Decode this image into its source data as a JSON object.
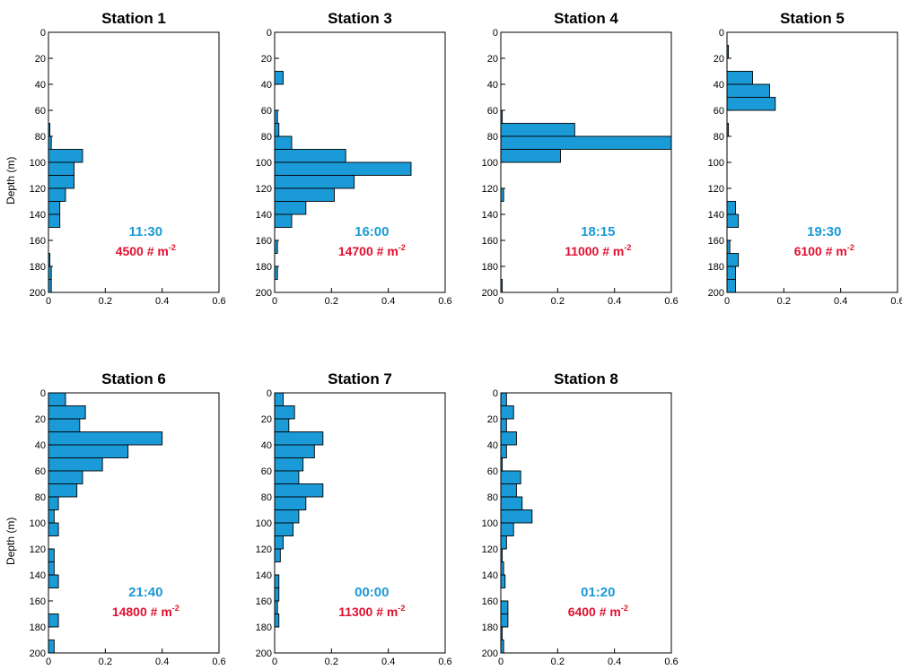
{
  "colors": {
    "bar": "#1a9ad6",
    "time": "#1a9ad6",
    "density": "#e0102f",
    "axis": "#000000"
  },
  "chart_data": [
    {
      "type": "bar",
      "orientation": "horizontal",
      "title": "Station 1",
      "ylabel": "Depth (m)",
      "xlabel": "",
      "xlim": [
        0,
        0.6
      ],
      "ylim": [
        200,
        0
      ],
      "xticks": [
        "0",
        "0.2",
        "0.4",
        "0.6"
      ],
      "yticks": [
        "0",
        "20",
        "40",
        "60",
        "80",
        "100",
        "120",
        "140",
        "160",
        "180",
        "200"
      ],
      "bin_width": 10,
      "depth_bins": [
        5,
        15,
        25,
        35,
        45,
        55,
        65,
        75,
        85,
        95,
        105,
        115,
        125,
        135,
        145,
        155,
        165,
        175,
        185,
        195
      ],
      "values": [
        0,
        0,
        0,
        0,
        0,
        0,
        0,
        0.005,
        0.01,
        0.12,
        0.09,
        0.09,
        0.06,
        0.04,
        0.04,
        0,
        0,
        0.005,
        0.01,
        0.01
      ],
      "annotations": {
        "time": "11:30",
        "density_value": "4500",
        "density_unit": "# m",
        "density_exp": "-2"
      }
    },
    {
      "type": "bar",
      "orientation": "horizontal",
      "title": "Station 3",
      "ylabel": "",
      "xlabel": "",
      "xlim": [
        0,
        0.6
      ],
      "ylim": [
        200,
        0
      ],
      "xticks": [
        "0",
        "0.2",
        "0.4",
        "0.6"
      ],
      "yticks": [
        "0",
        "20",
        "40",
        "60",
        "80",
        "100",
        "120",
        "140",
        "160",
        "180",
        "200"
      ],
      "bin_width": 10,
      "depth_bins": [
        5,
        15,
        25,
        35,
        45,
        55,
        65,
        75,
        85,
        95,
        105,
        115,
        125,
        135,
        145,
        155,
        165,
        175,
        185,
        195
      ],
      "values": [
        0,
        0,
        0,
        0.03,
        0,
        0,
        0.01,
        0.015,
        0.06,
        0.25,
        0.48,
        0.28,
        0.21,
        0.11,
        0.06,
        0,
        0.01,
        0,
        0.01,
        0
      ],
      "annotations": {
        "time": "16:00",
        "density_value": "14700",
        "density_unit": "# m",
        "density_exp": "-2"
      }
    },
    {
      "type": "bar",
      "orientation": "horizontal",
      "title": "Station 4",
      "ylabel": "",
      "xlabel": "",
      "xlim": [
        0,
        0.6
      ],
      "ylim": [
        200,
        0
      ],
      "xticks": [
        "0",
        "0.2",
        "0.4",
        "0.6"
      ],
      "yticks": [
        "0",
        "20",
        "40",
        "60",
        "80",
        "100",
        "120",
        "140",
        "160",
        "180",
        "200"
      ],
      "bin_width": 10,
      "depth_bins": [
        5,
        15,
        25,
        35,
        45,
        55,
        65,
        75,
        85,
        95,
        105,
        115,
        125,
        135,
        145,
        155,
        165,
        175,
        185,
        195
      ],
      "values": [
        0,
        0,
        0,
        0,
        0,
        0,
        0.005,
        0.26,
        0.6,
        0.21,
        0,
        0,
        0.01,
        0,
        0,
        0,
        0,
        0,
        0,
        0.005
      ],
      "annotations": {
        "time": "18:15",
        "density_value": "11000",
        "density_unit": "# m",
        "density_exp": "-2"
      }
    },
    {
      "type": "bar",
      "orientation": "horizontal",
      "title": "Station 5",
      "ylabel": "",
      "xlabel": "",
      "xlim": [
        0,
        0.6
      ],
      "ylim": [
        200,
        0
      ],
      "xticks": [
        "0",
        "0.2",
        "0.4",
        "0.6"
      ],
      "yticks": [
        "0",
        "20",
        "40",
        "60",
        "80",
        "100",
        "120",
        "140",
        "160",
        "180",
        "200"
      ],
      "bin_width": 10,
      "depth_bins": [
        5,
        15,
        25,
        35,
        45,
        55,
        65,
        75,
        85,
        95,
        105,
        115,
        125,
        135,
        145,
        155,
        165,
        175,
        185,
        195
      ],
      "values": [
        0,
        0.005,
        0,
        0.09,
        0.15,
        0.17,
        0,
        0.005,
        0,
        0,
        0,
        0,
        0,
        0.03,
        0.04,
        0,
        0.01,
        0.04,
        0.03,
        0.03
      ],
      "annotations": {
        "time": "19:30",
        "density_value": "6100",
        "density_unit": "# m",
        "density_exp": "-2"
      }
    },
    {
      "type": "bar",
      "orientation": "horizontal",
      "title": "Station 6",
      "ylabel": "Depth (m)",
      "xlabel": "",
      "xlim": [
        0,
        0.6
      ],
      "ylim": [
        200,
        0
      ],
      "xticks": [
        "0",
        "0.2",
        "0.4",
        "0.6"
      ],
      "yticks": [
        "0",
        "20",
        "40",
        "60",
        "80",
        "100",
        "120",
        "140",
        "160",
        "180",
        "200"
      ],
      "bin_width": 10,
      "depth_bins": [
        5,
        15,
        25,
        35,
        45,
        55,
        65,
        75,
        85,
        95,
        105,
        115,
        125,
        135,
        145,
        155,
        165,
        175,
        185,
        195
      ],
      "values": [
        0.06,
        0.13,
        0.11,
        0.4,
        0.28,
        0.19,
        0.12,
        0.1,
        0.035,
        0.02,
        0.035,
        0,
        0.02,
        0.02,
        0.035,
        0,
        0,
        0.035,
        0,
        0.02
      ],
      "annotations": {
        "time": "21:40",
        "density_value": "14800",
        "density_unit": "# m",
        "density_exp": "-2"
      }
    },
    {
      "type": "bar",
      "orientation": "horizontal",
      "title": "Station 7",
      "ylabel": "",
      "xlabel": "",
      "xlim": [
        0,
        0.6
      ],
      "ylim": [
        200,
        0
      ],
      "xticks": [
        "0",
        "0.2",
        "0.4",
        "0.6"
      ],
      "yticks": [
        "0",
        "20",
        "40",
        "60",
        "80",
        "100",
        "120",
        "140",
        "160",
        "180",
        "200"
      ],
      "bin_width": 10,
      "depth_bins": [
        5,
        15,
        25,
        35,
        45,
        55,
        65,
        75,
        85,
        95,
        105,
        115,
        125,
        135,
        145,
        155,
        165,
        175,
        185,
        195
      ],
      "values": [
        0.03,
        0.07,
        0.05,
        0.17,
        0.14,
        0.1,
        0.085,
        0.17,
        0.11,
        0.085,
        0.065,
        0.03,
        0.02,
        0,
        0.015,
        0.015,
        0.01,
        0.015,
        0,
        0
      ],
      "annotations": {
        "time": "00:00",
        "density_value": "11300",
        "density_unit": "# m",
        "density_exp": "-2"
      }
    },
    {
      "type": "bar",
      "orientation": "horizontal",
      "title": "Station 8",
      "ylabel": "",
      "xlabel": "",
      "xlim": [
        0,
        0.6
      ],
      "ylim": [
        200,
        0
      ],
      "xticks": [
        "0",
        "0.2",
        "0.4",
        "0.6"
      ],
      "yticks": [
        "0",
        "20",
        "40",
        "60",
        "80",
        "100",
        "120",
        "140",
        "160",
        "180",
        "200"
      ],
      "bin_width": 10,
      "depth_bins": [
        5,
        15,
        25,
        35,
        45,
        55,
        65,
        75,
        85,
        95,
        105,
        115,
        125,
        135,
        145,
        155,
        165,
        175,
        185,
        195
      ],
      "values": [
        0.02,
        0.045,
        0.02,
        0.055,
        0.02,
        0.005,
        0.07,
        0.055,
        0.075,
        0.11,
        0.045,
        0.02,
        0.005,
        0.01,
        0.015,
        0,
        0.025,
        0.025,
        0.005,
        0.01
      ],
      "annotations": {
        "time": "01:20",
        "density_value": "6400",
        "density_unit": "# m",
        "density_exp": "-2"
      }
    }
  ]
}
